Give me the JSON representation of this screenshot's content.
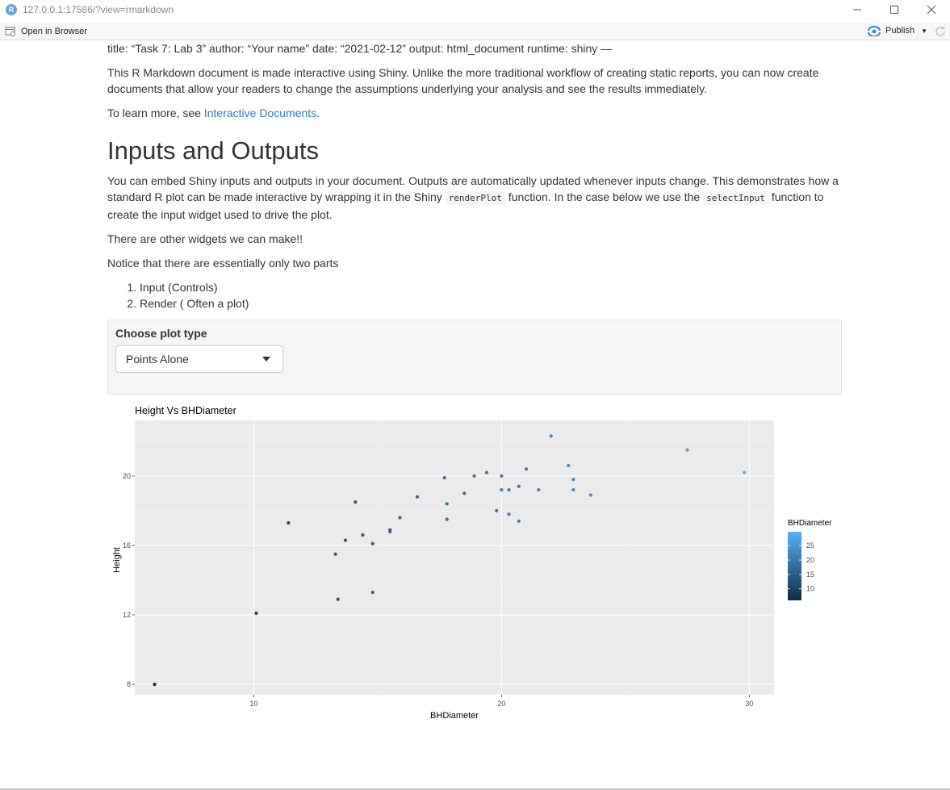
{
  "window": {
    "title": "127.0.0.1:17586/?view=rmarkdown",
    "app_icon": "R"
  },
  "toolbar": {
    "open_in_browser": "Open in Browser",
    "publish": "Publish"
  },
  "doc": {
    "yaml_line": "title: “Task 7: Lab 3” author: “Your name” date: “2021-02-12” output: html_document runtime: shiny —",
    "intro": "This R Markdown document is made interactive using Shiny. Unlike the more traditional workflow of creating static reports, you can now create documents that allow your readers to change the assumptions underlying your analysis and see the results immediately.",
    "learn_more_prefix": "To learn more, see ",
    "learn_more_link": "Interactive Documents",
    "learn_more_suffix": ".",
    "heading": "Inputs and Outputs",
    "para1_a": "You can embed Shiny inputs and outputs in your document. Outputs are automatically updated whenever inputs change. This demonstrates how a standard R plot can be made interactive by wrapping it in the Shiny ",
    "para1_code1": "renderPlot",
    "para1_b": " function. In the case below we use the ",
    "para1_code2": "selectInput",
    "para1_c": " function to create the input widget used to drive the plot.",
    "para2": "There are other widgets we can make!!",
    "para3": "Notice that there are essentially only two parts",
    "list": [
      "Input (Controls)",
      "Render ( Often a plot)"
    ]
  },
  "control": {
    "label": "Choose plot type",
    "selected": "Points Alone"
  },
  "chart_data": {
    "type": "scatter",
    "title": "Height Vs BHDiameter",
    "xlabel": "BHDiameter",
    "ylabel": "Height",
    "xlim": [
      5.2,
      31.0
    ],
    "ylim": [
      7.4,
      23.2
    ],
    "xticks": [
      10,
      20,
      30
    ],
    "yticks": [
      8,
      12,
      16,
      20
    ],
    "grid": true,
    "legend": {
      "title": "BHDiameter",
      "ticks": [
        10,
        15,
        20,
        25
      ],
      "range": [
        6.0,
        29.8
      ],
      "position": "right"
    },
    "points": [
      {
        "x": 6.0,
        "y": 8.0
      },
      {
        "x": 10.1,
        "y": 12.1
      },
      {
        "x": 11.4,
        "y": 17.3
      },
      {
        "x": 13.3,
        "y": 15.5
      },
      {
        "x": 13.4,
        "y": 12.9
      },
      {
        "x": 13.7,
        "y": 16.3
      },
      {
        "x": 14.1,
        "y": 18.5
      },
      {
        "x": 14.4,
        "y": 16.6
      },
      {
        "x": 14.8,
        "y": 16.1
      },
      {
        "x": 14.8,
        "y": 13.3
      },
      {
        "x": 15.5,
        "y": 16.8
      },
      {
        "x": 15.5,
        "y": 16.9
      },
      {
        "x": 15.9,
        "y": 17.6
      },
      {
        "x": 16.6,
        "y": 18.8
      },
      {
        "x": 17.7,
        "y": 19.9
      },
      {
        "x": 17.8,
        "y": 18.4
      },
      {
        "x": 17.8,
        "y": 17.5
      },
      {
        "x": 18.5,
        "y": 19.0
      },
      {
        "x": 18.9,
        "y": 20.0
      },
      {
        "x": 19.4,
        "y": 20.2
      },
      {
        "x": 19.8,
        "y": 18.0
      },
      {
        "x": 20.0,
        "y": 20.0
      },
      {
        "x": 20.0,
        "y": 19.2
      },
      {
        "x": 20.3,
        "y": 17.8
      },
      {
        "x": 20.3,
        "y": 19.2
      },
      {
        "x": 20.7,
        "y": 19.4
      },
      {
        "x": 20.7,
        "y": 17.4
      },
      {
        "x": 21.0,
        "y": 20.4
      },
      {
        "x": 21.5,
        "y": 19.2
      },
      {
        "x": 22.0,
        "y": 22.3
      },
      {
        "x": 22.7,
        "y": 20.6
      },
      {
        "x": 22.9,
        "y": 19.8
      },
      {
        "x": 22.9,
        "y": 19.2
      },
      {
        "x": 23.6,
        "y": 18.9
      },
      {
        "x": 27.5,
        "y": 21.5
      },
      {
        "x": 29.8,
        "y": 20.2
      }
    ]
  },
  "colors": {
    "link": "#337ab7",
    "panel_bg": "#ebebeb",
    "grid": "#ffffff",
    "low": "#132B43",
    "high": "#56B1F7"
  }
}
